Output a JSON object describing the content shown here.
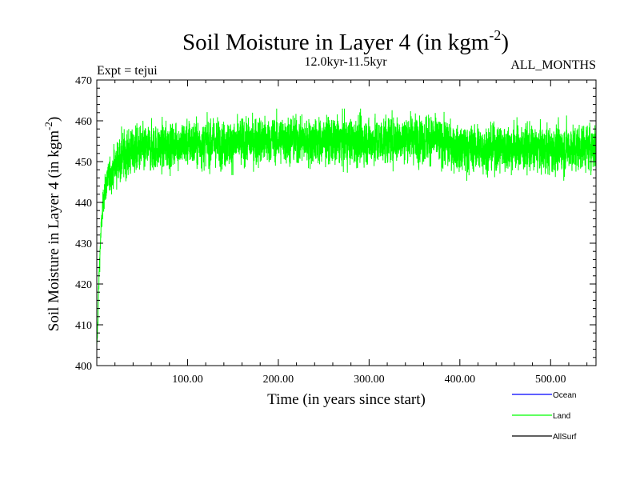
{
  "chart_data": {
    "type": "line",
    "title": "Soil Moisture in Layer 4 (in kgm",
    "title_superscript": "-2",
    "title_close": ")",
    "subtitle": "12.0kyr-11.5kyr",
    "experiment": "Expt = tejui",
    "months": "ALL_MONTHS",
    "xlabel": "Time (in years since start)",
    "ylabel": "Soil Moisture in Layer 4 (in kgm",
    "ylabel_superscript": "-2",
    "ylabel_close": ")",
    "xlim": [
      0,
      550
    ],
    "ylim": [
      400,
      470
    ],
    "x_ticks": [
      100,
      200,
      300,
      400,
      500
    ],
    "x_tick_labels": [
      "100.00",
      "200.00",
      "300.00",
      "400.00",
      "500.00"
    ],
    "y_ticks": [
      400,
      410,
      420,
      430,
      440,
      450,
      460,
      470
    ],
    "y_tick_labels": [
      "400",
      "410",
      "420",
      "430",
      "440",
      "450",
      "460",
      "470"
    ],
    "legend": [
      {
        "name": "Ocean",
        "color": "#0000ff"
      },
      {
        "name": "Land",
        "color": "#00ff00"
      },
      {
        "name": "AllSurf",
        "color": "#000000"
      }
    ],
    "series": [
      {
        "name": "Land",
        "color": "#00ff00",
        "spinup": [
          [
            0,
            404
          ],
          [
            1,
            410
          ],
          [
            2,
            418
          ],
          [
            3,
            425
          ],
          [
            4,
            430
          ],
          [
            5,
            434
          ],
          [
            6,
            437
          ],
          [
            7,
            440
          ],
          [
            8,
            442
          ],
          [
            10,
            444
          ],
          [
            13,
            446
          ],
          [
            16,
            447.5
          ],
          [
            20,
            449
          ],
          [
            25,
            450.5
          ],
          [
            30,
            451.5
          ],
          [
            40,
            452.5
          ],
          [
            50,
            453
          ]
        ],
        "trend": [
          [
            50,
            453
          ],
          [
            100,
            454.5
          ],
          [
            150,
            454.5
          ],
          [
            200,
            455.5
          ],
          [
            250,
            455
          ],
          [
            300,
            455
          ],
          [
            350,
            456
          ],
          [
            380,
            455
          ],
          [
            400,
            453
          ],
          [
            450,
            453.5
          ],
          [
            500,
            453
          ],
          [
            550,
            454
          ]
        ],
        "noise_amplitude": 3.5,
        "min_value": 404,
        "max_value": 463
      }
    ]
  }
}
